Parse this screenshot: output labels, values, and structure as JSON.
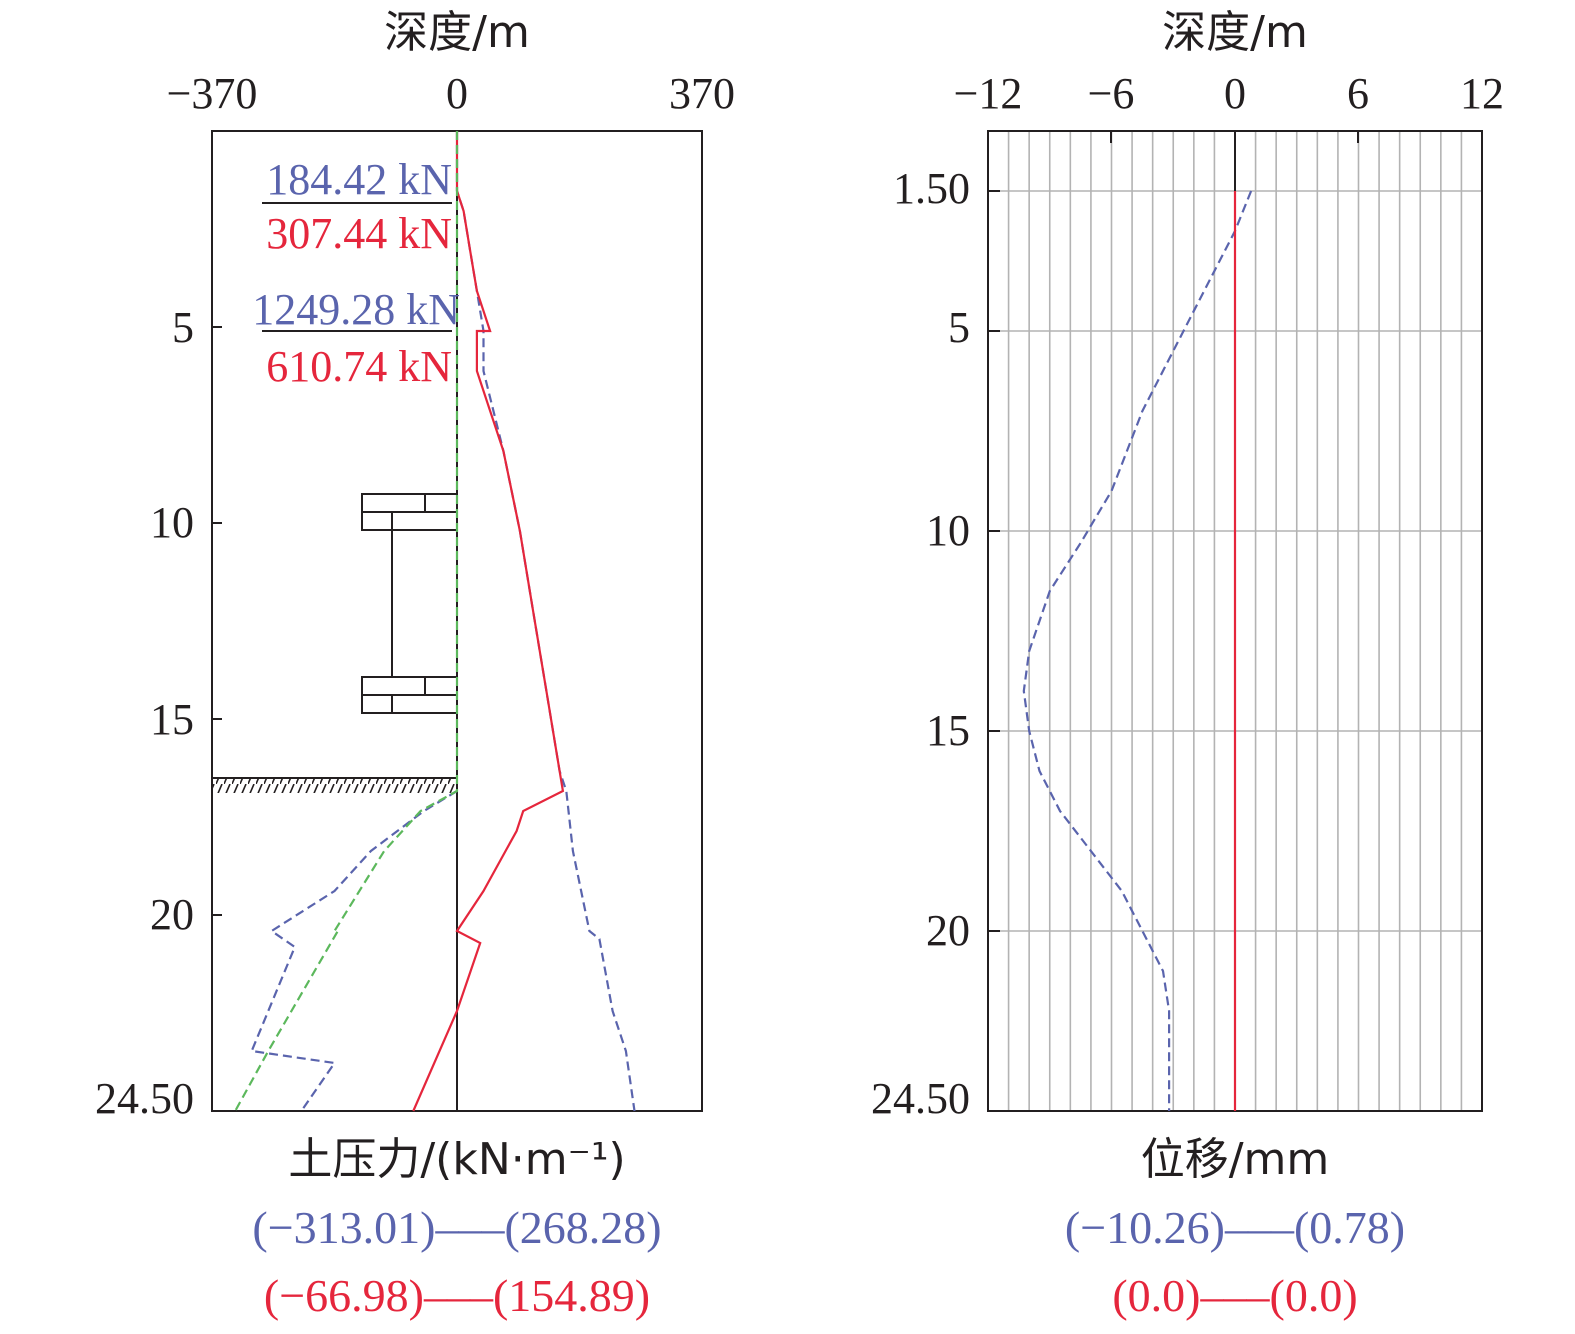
{
  "colors": {
    "blue": "#5a64ad",
    "red": "#e5263c",
    "green": "#5cb85c",
    "axis": "#231f20",
    "grid": "#b3b3b3"
  },
  "chart_data": [
    {
      "type": "line",
      "top_axis_label": "深度/m",
      "bottom_axis_label": "土压力/(kN·m⁻¹)",
      "x_ticks": [
        "−370",
        "0",
        "370"
      ],
      "x_range": [
        -370,
        370
      ],
      "y_ticks": [
        "5",
        "10",
        "15",
        "20",
        "24.50"
      ],
      "y_range": [
        0,
        24.5
      ],
      "y_inverted": true,
      "excavation_depth": 16.5,
      "annotations": [
        {
          "text": "184.42 kN",
          "color": "blue"
        },
        {
          "text": "307.44 kN",
          "color": "red"
        },
        {
          "text": "1249.28 kN",
          "color": "blue"
        },
        {
          "text": "610.74 kN",
          "color": "red"
        }
      ],
      "range_labels": [
        {
          "text": "(−313.01)–––(268.28)",
          "color": "blue"
        },
        {
          "text": "(−66.98)–––(154.89)",
          "color": "red"
        }
      ],
      "series": [
        {
          "color": "blue",
          "style": "dashed",
          "points": [
            [
              0,
              0
            ],
            [
              0,
              1.5
            ],
            [
              10,
              2
            ],
            [
              20,
              3
            ],
            [
              30,
              4
            ],
            [
              40,
              5
            ],
            [
              40,
              6
            ],
            [
              70,
              8
            ],
            [
              95,
              10
            ],
            [
              115,
              12
            ],
            [
              135,
              14
            ],
            [
              155,
              16
            ],
            [
              165,
              16.5
            ],
            [
              175,
              18
            ],
            [
              200,
              20
            ],
            [
              215,
              20.2
            ],
            [
              235,
              22
            ],
            [
              255,
              23
            ],
            [
              268,
              24.5
            ]
          ]
        },
        {
          "color": "red",
          "style": "solid",
          "points": [
            [
              0,
              0
            ],
            [
              0,
              1.5
            ],
            [
              10,
              2
            ],
            [
              20,
              3
            ],
            [
              30,
              4
            ],
            [
              50,
              5
            ],
            [
              30,
              5
            ],
            [
              30,
              6
            ],
            [
              70,
              8
            ],
            [
              95,
              10
            ],
            [
              115,
              12
            ],
            [
              135,
              14
            ],
            [
              155,
              16
            ],
            [
              160,
              16.5
            ],
            [
              100,
              17
            ],
            [
              90,
              17.5
            ],
            [
              40,
              19
            ],
            [
              0,
              20
            ],
            [
              35,
              20.3
            ],
            [
              0,
              22
            ],
            [
              -66,
              24.5
            ]
          ]
        },
        {
          "color": "blue",
          "style": "dashed",
          "points": [
            [
              0,
              16.5
            ],
            [
              -50,
              17
            ],
            [
              -130,
              18
            ],
            [
              -185,
              19
            ],
            [
              -280,
              20
            ],
            [
              -245,
              20.4
            ],
            [
              -310,
              23
            ],
            [
              -185,
              23.3
            ],
            [
              -235,
              24.5
            ]
          ]
        },
        {
          "color": "green",
          "style": "dashed",
          "points": [
            [
              0,
              0
            ],
            [
              0,
              16.5
            ],
            [
              -55,
              17
            ],
            [
              -110,
              18
            ],
            [
              -185,
              20
            ],
            [
              -180,
              20
            ],
            [
              -285,
              23
            ],
            [
              -335,
              24.5
            ]
          ]
        }
      ]
    },
    {
      "type": "line",
      "top_axis_label": "深度/m",
      "bottom_axis_label": "位移/mm",
      "x_ticks": [
        "−12",
        "−6",
        "0",
        "6",
        "12"
      ],
      "x_range": [
        -12,
        12
      ],
      "y_ticks": [
        "1.50",
        "5",
        "10",
        "15",
        "20",
        "24.50"
      ],
      "y_range": [
        0,
        24.5
      ],
      "y_inverted": true,
      "grid": true,
      "range_labels": [
        {
          "text": "(−10.26)–––(0.78)",
          "color": "blue"
        },
        {
          "text": "(0.0)–––(0.0)",
          "color": "red"
        }
      ],
      "series": [
        {
          "color": "blue",
          "style": "dashed",
          "points": [
            [
              0.78,
              1.5
            ],
            [
              0,
              2.5
            ],
            [
              -2.5,
              5
            ],
            [
              -4.5,
              7
            ],
            [
              -6,
              9
            ],
            [
              -7.5,
              10.3
            ],
            [
              -9,
              11.5
            ],
            [
              -10,
              13
            ],
            [
              -10.26,
              14
            ],
            [
              -10,
              15
            ],
            [
              -9.5,
              16
            ],
            [
              -8.5,
              17
            ],
            [
              -7,
              18
            ],
            [
              -5.5,
              19
            ],
            [
              -4.5,
              20
            ],
            [
              -3.5,
              21
            ],
            [
              -3.2,
              22
            ],
            [
              -3.2,
              24.5
            ]
          ]
        },
        {
          "color": "red",
          "style": "solid",
          "points": [
            [
              0,
              1.5
            ],
            [
              0,
              24.5
            ]
          ]
        }
      ]
    }
  ]
}
